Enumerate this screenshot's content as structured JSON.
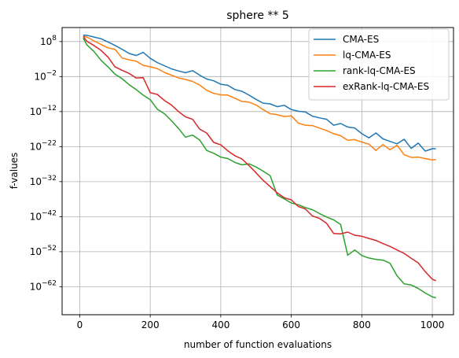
{
  "chart_data": {
    "type": "line",
    "title": "sphere ** 5",
    "xlabel": "number of function evaluations",
    "ylabel": "f-values",
    "yscale": "log",
    "xlim": [
      -50,
      1060
    ],
    "ylim_exponent": [
      -70,
      12
    ],
    "xticks": [
      0,
      200,
      400,
      600,
      800,
      1000
    ],
    "yticks_exponent": [
      8,
      -2,
      -12,
      -22,
      -32,
      -42,
      -52,
      -62
    ],
    "grid": true,
    "legend_position": "top-right",
    "series": [
      {
        "name": "CMA-ES",
        "color": "#1f77b4",
        "x": [
          10,
          20,
          40,
          60,
          80,
          100,
          120,
          140,
          160,
          180,
          200,
          220,
          240,
          260,
          280,
          300,
          320,
          340,
          360,
          380,
          400,
          420,
          440,
          460,
          480,
          500,
          520,
          540,
          560,
          580,
          600,
          620,
          640,
          660,
          680,
          700,
          720,
          740,
          760,
          780,
          800,
          820,
          840,
          860,
          880,
          900,
          920,
          940,
          960,
          980,
          1000,
          1010
        ],
        "y_log10": [
          9.8,
          9.8,
          9.3,
          8.8,
          7.9,
          6.9,
          5.8,
          4.6,
          4.0,
          4.9,
          3.2,
          2.0,
          1.1,
          0.2,
          -0.4,
          -0.9,
          -0.3,
          -1.6,
          -2.7,
          -3.2,
          -4.2,
          -4.5,
          -5.7,
          -6.2,
          -7.3,
          -8.5,
          -9.6,
          -9.8,
          -10.6,
          -10.2,
          -11.4,
          -11.9,
          -12.1,
          -13.3,
          -13.8,
          -14.2,
          -15.9,
          -15.4,
          -16.4,
          -16.7,
          -18.3,
          -19.5,
          -18.1,
          -19.8,
          -20.5,
          -21.2,
          -19.9,
          -22.5,
          -21.0,
          -23.3,
          -22.6,
          -22.6
        ]
      },
      {
        "name": "lq-CMA-ES",
        "color": "#ff7f0e",
        "x": [
          10,
          20,
          40,
          60,
          80,
          100,
          120,
          140,
          160,
          180,
          200,
          220,
          240,
          260,
          280,
          300,
          320,
          340,
          360,
          380,
          400,
          420,
          440,
          460,
          480,
          500,
          520,
          540,
          560,
          580,
          600,
          620,
          640,
          660,
          680,
          700,
          720,
          740,
          760,
          780,
          800,
          820,
          840,
          860,
          880,
          900,
          920,
          940,
          960,
          980,
          1000,
          1010
        ],
        "y_log10": [
          9.5,
          9.3,
          8.2,
          7.2,
          6.2,
          5.8,
          3.3,
          2.8,
          2.4,
          1.2,
          0.8,
          0.3,
          -0.8,
          -1.6,
          -2.4,
          -2.8,
          -3.4,
          -4.4,
          -5.9,
          -6.8,
          -7.2,
          -7.3,
          -8.2,
          -9.1,
          -9.3,
          -10.1,
          -11.4,
          -12.6,
          -12.9,
          -13.4,
          -13.2,
          -15.3,
          -15.9,
          -16.0,
          -16.7,
          -17.4,
          -18.3,
          -18.9,
          -20.2,
          -20.0,
          -20.7,
          -21.3,
          -23.1,
          -21.4,
          -22.9,
          -21.6,
          -24.3,
          -25.1,
          -25.0,
          -25.4,
          -25.8,
          -25.7
        ]
      },
      {
        "name": "rank-lq-CMA-ES",
        "color": "#2ca02c",
        "x": [
          10,
          20,
          40,
          60,
          80,
          100,
          120,
          140,
          160,
          180,
          200,
          220,
          240,
          260,
          280,
          300,
          320,
          340,
          360,
          380,
          400,
          420,
          440,
          460,
          480,
          500,
          520,
          540,
          560,
          580,
          600,
          620,
          640,
          660,
          680,
          700,
          720,
          740,
          760,
          780,
          800,
          820,
          840,
          860,
          880,
          900,
          920,
          940,
          960,
          980,
          1000,
          1010
        ],
        "y_log10": [
          9.0,
          7.1,
          5.2,
          2.7,
          0.8,
          -1.3,
          -2.6,
          -4.3,
          -5.7,
          -7.3,
          -8.6,
          -11.3,
          -12.6,
          -14.6,
          -16.8,
          -19.3,
          -18.7,
          -20.1,
          -23.1,
          -23.9,
          -25.0,
          -25.4,
          -26.5,
          -27.2,
          -26.9,
          -27.8,
          -29.0,
          -30.3,
          -35.8,
          -36.9,
          -38.1,
          -38.6,
          -39.4,
          -40.0,
          -41.1,
          -42.1,
          -42.9,
          -44.2,
          -53.0,
          -51.5,
          -53.1,
          -53.8,
          -54.2,
          -54.4,
          -55.3,
          -58.9,
          -61.2,
          -61.5,
          -62.5,
          -63.8,
          -64.9,
          -65.2
        ]
      },
      {
        "name": "exRank-lq-CMA-ES",
        "color": "#d62728",
        "x": [
          10,
          20,
          40,
          60,
          80,
          100,
          120,
          140,
          160,
          180,
          200,
          220,
          240,
          260,
          280,
          300,
          320,
          340,
          360,
          380,
          400,
          420,
          440,
          460,
          480,
          500,
          520,
          540,
          560,
          580,
          600,
          620,
          640,
          660,
          680,
          700,
          720,
          740,
          760,
          780,
          800,
          820,
          840,
          860,
          880,
          900,
          920,
          940,
          960,
          980,
          1000,
          1010
        ],
        "y_log10": [
          9.5,
          8.1,
          6.9,
          5.5,
          3.6,
          0.8,
          -0.2,
          -1.1,
          -2.4,
          -2.3,
          -6.6,
          -7.1,
          -8.8,
          -10.1,
          -12.0,
          -13.5,
          -14.2,
          -17.0,
          -18.1,
          -20.8,
          -21.5,
          -23.2,
          -24.6,
          -25.5,
          -27.4,
          -29.5,
          -31.6,
          -33.4,
          -35.2,
          -36.6,
          -37.2,
          -39.1,
          -39.8,
          -41.8,
          -42.5,
          -43.9,
          -46.8,
          -46.9,
          -46.4,
          -47.3,
          -47.6,
          -48.2,
          -48.8,
          -49.7,
          -50.5,
          -51.5,
          -52.5,
          -53.9,
          -55.2,
          -57.7,
          -59.9,
          -60.3
        ]
      }
    ]
  }
}
